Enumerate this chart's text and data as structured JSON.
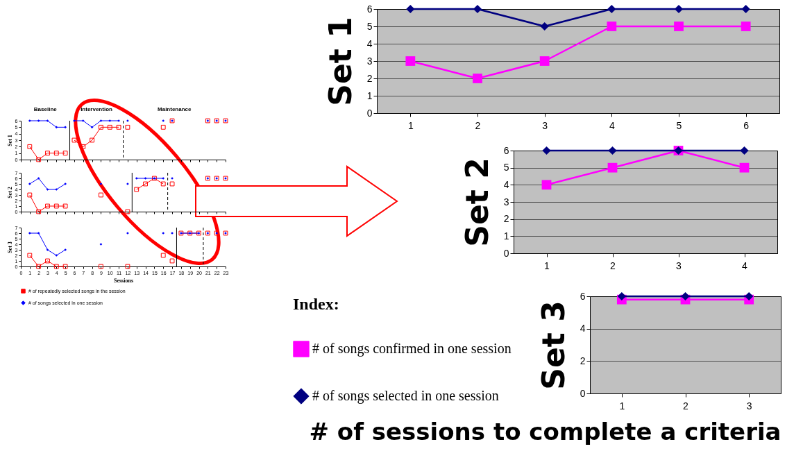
{
  "chart_data": [
    {
      "type": "line",
      "ylabel": "Set 1",
      "xlim": [
        0,
        23
      ],
      "xticks": [
        0,
        1,
        2,
        3,
        4,
        5,
        6,
        7,
        8,
        9,
        10,
        11,
        12,
        13,
        14,
        15,
        16,
        17,
        18,
        19,
        20,
        21,
        22,
        23
      ],
      "ylim": [
        0,
        6
      ],
      "yticks": [
        0,
        1,
        2,
        3,
        4,
        5,
        6
      ],
      "tick_labels": "y",
      "grid": false,
      "legend": false,
      "annotations": [
        "Baseline",
        "Intervention",
        "Maintenance"
      ],
      "ref_lines": [
        {
          "axis": "x",
          "value": 5.5,
          "line_style": "solid",
          "color": "#000000"
        },
        {
          "axis": "x",
          "value": 11.5,
          "line_style": "dashed",
          "color": "#000000"
        }
      ],
      "series": [
        {
          "type": "line",
          "color": "#ff0000",
          "marker": "square",
          "x": [
            1,
            2,
            3,
            4,
            5
          ],
          "values": [
            2,
            0,
            1,
            1,
            1
          ]
        },
        {
          "type": "line",
          "color": "#ff0000",
          "marker": "square",
          "x": [
            6,
            7,
            8,
            9,
            10,
            11
          ],
          "values": [
            3,
            2,
            3,
            5,
            5,
            5
          ]
        },
        {
          "type": "scatter",
          "color": "#ff0000",
          "marker": "square",
          "x": [
            12,
            16,
            17,
            21,
            22,
            23
          ],
          "values": [
            5,
            5,
            6,
            6,
            6,
            6
          ]
        },
        {
          "type": "line",
          "color": "#0000ff",
          "marker": "diamond",
          "x": [
            1,
            2,
            3,
            4,
            5
          ],
          "values": [
            6,
            6,
            6,
            5,
            5
          ]
        },
        {
          "type": "line",
          "color": "#0000ff",
          "marker": "diamond",
          "x": [
            6,
            7,
            8,
            9,
            10,
            11
          ],
          "values": [
            6,
            6,
            5,
            6,
            6,
            6
          ]
        },
        {
          "type": "scatter",
          "color": "#0000ff",
          "marker": "diamond",
          "x": [
            12,
            16,
            17,
            21,
            22,
            23
          ],
          "values": [
            6,
            6,
            6,
            6,
            6,
            6
          ]
        }
      ]
    },
    {
      "type": "line",
      "ylabel": "Set 2",
      "xlim": [
        0,
        23
      ],
      "xticks": [
        0,
        1,
        2,
        3,
        4,
        5,
        6,
        7,
        8,
        9,
        10,
        11,
        12,
        13,
        14,
        15,
        16,
        17,
        18,
        19,
        20,
        21,
        22,
        23
      ],
      "ylim": [
        0,
        7
      ],
      "yticks": [
        0,
        1,
        2,
        3,
        4,
        5,
        6,
        7
      ],
      "tick_labels": "y",
      "grid": false,
      "legend": false,
      "ref_lines": [
        {
          "axis": "x",
          "value": 12.5,
          "line_style": "solid",
          "color": "#000000"
        },
        {
          "axis": "x",
          "value": 16.5,
          "line_style": "dashed",
          "color": "#000000"
        }
      ],
      "series": [
        {
          "type": "line",
          "color": "#ff0000",
          "marker": "square",
          "x": [
            1,
            2,
            3,
            4,
            5
          ],
          "values": [
            3,
            0,
            1,
            1,
            1
          ]
        },
        {
          "type": "scatter",
          "color": "#ff0000",
          "marker": "square",
          "x": [
            9,
            12
          ],
          "values": [
            3,
            0
          ]
        },
        {
          "type": "line",
          "color": "#ff0000",
          "marker": "square",
          "x": [
            13,
            14,
            15,
            16
          ],
          "values": [
            4,
            5,
            6,
            5
          ]
        },
        {
          "type": "scatter",
          "color": "#ff0000",
          "marker": "square",
          "x": [
            17,
            21,
            22,
            23
          ],
          "values": [
            5,
            6,
            6,
            6
          ]
        },
        {
          "type": "line",
          "color": "#0000ff",
          "marker": "diamond",
          "x": [
            1,
            2,
            3,
            4,
            5
          ],
          "values": [
            5,
            6,
            4,
            4,
            5
          ]
        },
        {
          "type": "scatter",
          "color": "#0000ff",
          "marker": "diamond",
          "x": [
            9,
            12
          ],
          "values": [
            5,
            5
          ]
        },
        {
          "type": "line",
          "color": "#0000ff",
          "marker": "diamond",
          "x": [
            13,
            14,
            15,
            16
          ],
          "values": [
            6,
            6,
            6,
            6
          ]
        },
        {
          "type": "scatter",
          "color": "#0000ff",
          "marker": "diamond",
          "x": [
            17,
            21,
            22,
            23
          ],
          "values": [
            6,
            6,
            6,
            6
          ]
        }
      ]
    },
    {
      "type": "line",
      "ylabel": "Set 3",
      "xlabel": "Sessions",
      "xlim": [
        0,
        23
      ],
      "xticks": [
        0,
        1,
        2,
        3,
        4,
        5,
        6,
        7,
        8,
        9,
        10,
        11,
        12,
        13,
        14,
        15,
        16,
        17,
        18,
        19,
        20,
        21,
        22,
        23
      ],
      "ylim": [
        0,
        7
      ],
      "yticks": [
        0,
        1,
        2,
        3,
        4,
        5,
        6,
        7
      ],
      "grid": false,
      "legend": "bottom",
      "ref_lines": [
        {
          "axis": "x",
          "value": 17.5,
          "line_style": "solid",
          "color": "#000000"
        },
        {
          "axis": "x",
          "value": 20.5,
          "line_style": "dashed",
          "color": "#000000"
        }
      ],
      "series": [
        {
          "type": "line",
          "name": "# of repeatedly selected songs in the session",
          "color": "#ff0000",
          "marker": "square",
          "x": [
            1,
            2,
            3,
            4,
            5
          ],
          "values": [
            2,
            0,
            1,
            0,
            0
          ]
        },
        {
          "type": "scatter",
          "color": "#ff0000",
          "marker": "square",
          "x": [
            9,
            12,
            16,
            17
          ],
          "values": [
            0,
            0,
            2,
            1
          ]
        },
        {
          "type": "line",
          "color": "#ff0000",
          "marker": "square",
          "x": [
            18,
            19,
            20
          ],
          "values": [
            6,
            6,
            6
          ]
        },
        {
          "type": "scatter",
          "color": "#ff0000",
          "marker": "square",
          "x": [
            21,
            22,
            23
          ],
          "values": [
            6,
            6,
            6
          ]
        },
        {
          "type": "line",
          "name": "# of songs selected in one session",
          "color": "#0000ff",
          "marker": "diamond",
          "x": [
            1,
            2,
            3,
            4,
            5
          ],
          "values": [
            6,
            6,
            3,
            2,
            3
          ]
        },
        {
          "type": "scatter",
          "color": "#0000ff",
          "marker": "diamond",
          "x": [
            9,
            12,
            16,
            17
          ],
          "values": [
            4,
            6,
            6,
            6
          ]
        },
        {
          "type": "line",
          "color": "#0000ff",
          "marker": "diamond",
          "x": [
            18,
            19,
            20
          ],
          "values": [
            6,
            6,
            6
          ]
        },
        {
          "type": "scatter",
          "color": "#0000ff",
          "marker": "diamond",
          "x": [
            21,
            22,
            23
          ],
          "values": [
            6,
            6,
            6
          ]
        }
      ]
    },
    {
      "type": "line",
      "ylabel": "Set 1",
      "categories": [
        "1",
        "2",
        "3",
        "4",
        "5",
        "6"
      ],
      "ylim": [
        0,
        6
      ],
      "yticks": [
        0,
        1,
        2,
        3,
        4,
        5,
        6
      ],
      "grid": "y",
      "legend": false,
      "series": [
        {
          "color": "#ff00ff",
          "marker": "square",
          "values": [
            3,
            2,
            3,
            5,
            5,
            5
          ]
        },
        {
          "color": "#000080",
          "marker": "diamond",
          "values": [
            6,
            6,
            5,
            6,
            6,
            6
          ]
        }
      ]
    },
    {
      "type": "line",
      "ylabel": "Set 2",
      "categories": [
        "1",
        "2",
        "3",
        "4"
      ],
      "ylim": [
        0,
        6
      ],
      "yticks": [
        0,
        1,
        2,
        3,
        4,
        5,
        6
      ],
      "grid": "y",
      "legend": false,
      "series": [
        {
          "color": "#ff00ff",
          "marker": "square",
          "values": [
            4,
            5,
            6,
            5
          ]
        },
        {
          "color": "#000080",
          "marker": "diamond",
          "values": [
            6,
            6,
            6,
            6
          ]
        }
      ]
    },
    {
      "type": "line",
      "ylabel": "Set 3",
      "xlabel": "# of sessions to complete a criteria",
      "categories": [
        "1",
        "2",
        "3"
      ],
      "ylim": [
        0,
        6
      ],
      "yticks": [
        0,
        2,
        4,
        6
      ],
      "grid": "y",
      "legend": "left",
      "legend_title": "Index:",
      "series": [
        {
          "name": "# of songs confirmed in one session",
          "color": "#ff00ff",
          "marker": "square",
          "values": [
            5.8,
            5.8,
            5.8
          ]
        },
        {
          "name": "# of songs selected in one session",
          "color": "#000080",
          "marker": "diamond",
          "values": [
            6,
            6,
            6
          ]
        }
      ]
    }
  ]
}
